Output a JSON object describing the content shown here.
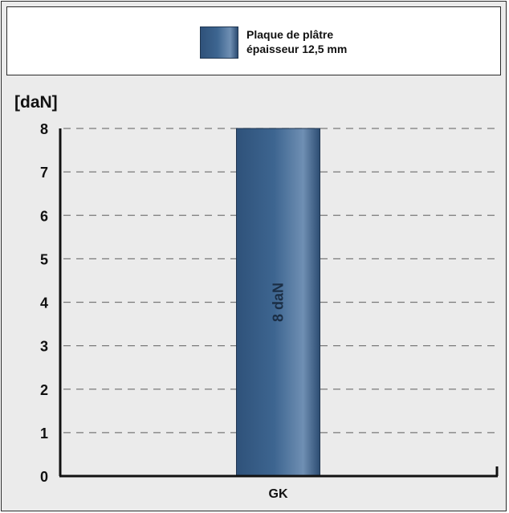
{
  "chart_data": {
    "type": "bar",
    "categories": [
      "GK"
    ],
    "series": [
      {
        "name": "Plaque de plâtre épaisseur 12,5 mm",
        "values": [
          8
        ],
        "bar_labels": [
          "8 daN"
        ],
        "color": "#3d6590"
      }
    ],
    "legend": {
      "line1": "Plaque de plâtre",
      "line2": "épaisseur 12,5 mm",
      "placement": "top"
    },
    "ylabel": "[daN]",
    "ylim": [
      0,
      8
    ],
    "yticks": [
      "0",
      "1",
      "2",
      "3",
      "4",
      "5",
      "6",
      "7",
      "8"
    ],
    "grid": true,
    "colors": {
      "background": "#ebebeb",
      "bar_dark": "#2f527a",
      "bar_light": "#6f8fb3",
      "grid": "#7a7a7a",
      "axis": "#111111"
    }
  }
}
